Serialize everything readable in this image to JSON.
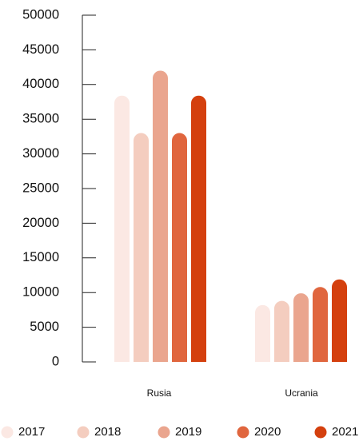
{
  "chart_data": {
    "type": "bar",
    "categories": [
      "Rusia",
      "Ucrania"
    ],
    "series": [
      {
        "name": "2017",
        "color": "#fbe8e3",
        "values": [
          38400,
          8200
        ]
      },
      {
        "name": "2018",
        "color": "#f4cdbf",
        "values": [
          33000,
          8800
        ]
      },
      {
        "name": "2019",
        "color": "#eaa58e",
        "values": [
          42000,
          9900
        ]
      },
      {
        "name": "2020",
        "color": "#e0663e",
        "values": [
          33000,
          10800
        ]
      },
      {
        "name": "2021",
        "color": "#d4400e",
        "values": [
          38400,
          11900
        ]
      }
    ],
    "yticks": [
      "0",
      "5000",
      "10000",
      "15000",
      "20000",
      "25000",
      "30000",
      "35000",
      "40000",
      "45000",
      "50000"
    ],
    "ylim": [
      0,
      50000
    ],
    "title": "",
    "xlabel": "",
    "ylabel": "",
    "legend_position": "bottom",
    "grid": false
  }
}
